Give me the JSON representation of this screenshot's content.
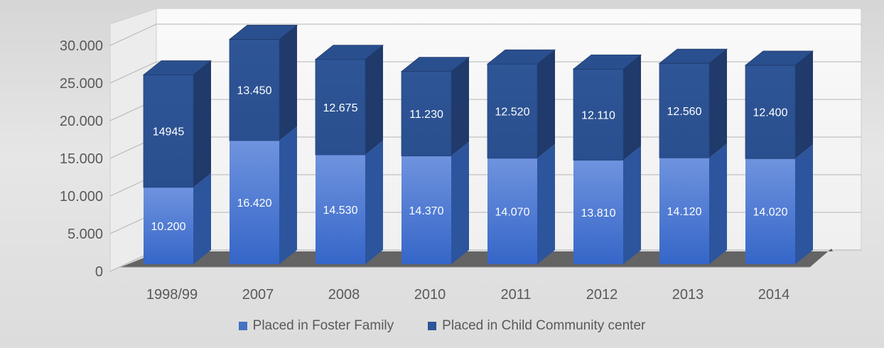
{
  "chart_data": {
    "type": "bar",
    "stacked": true,
    "style": "3d-column",
    "title": "",
    "xlabel": "",
    "ylabel": "",
    "ylim": [
      0,
      30000
    ],
    "yticks": [
      0,
      5000,
      10000,
      15000,
      20000,
      25000,
      30000
    ],
    "ytick_labels": [
      "0",
      "5.000",
      "10.000",
      "15.000",
      "20.000",
      "25.000",
      "30.000"
    ],
    "grid": true,
    "legend_position": "bottom",
    "categories": [
      "1998/99",
      "2007",
      "2008",
      "2010",
      "2011",
      "2012",
      "2013",
      "2014"
    ],
    "series": [
      {
        "name": "Placed in Foster Family",
        "color": "#3f72d0",
        "values": [
          10200,
          16420,
          14530,
          14370,
          14070,
          13810,
          14120,
          14020
        ],
        "labels": [
          "10.200",
          "16.420",
          "14.530",
          "14.370",
          "14.070",
          "13.810",
          "14.120",
          "14.020"
        ]
      },
      {
        "name": "Placed in Child Community center",
        "color": "#2f5597",
        "values": [
          14945,
          13450,
          12675,
          11230,
          12520,
          12110,
          12560,
          12400
        ],
        "labels": [
          "14945",
          "13.450",
          "12.675",
          "11.230",
          "12.520",
          "12.110",
          "12.560",
          "12.400"
        ]
      }
    ]
  }
}
